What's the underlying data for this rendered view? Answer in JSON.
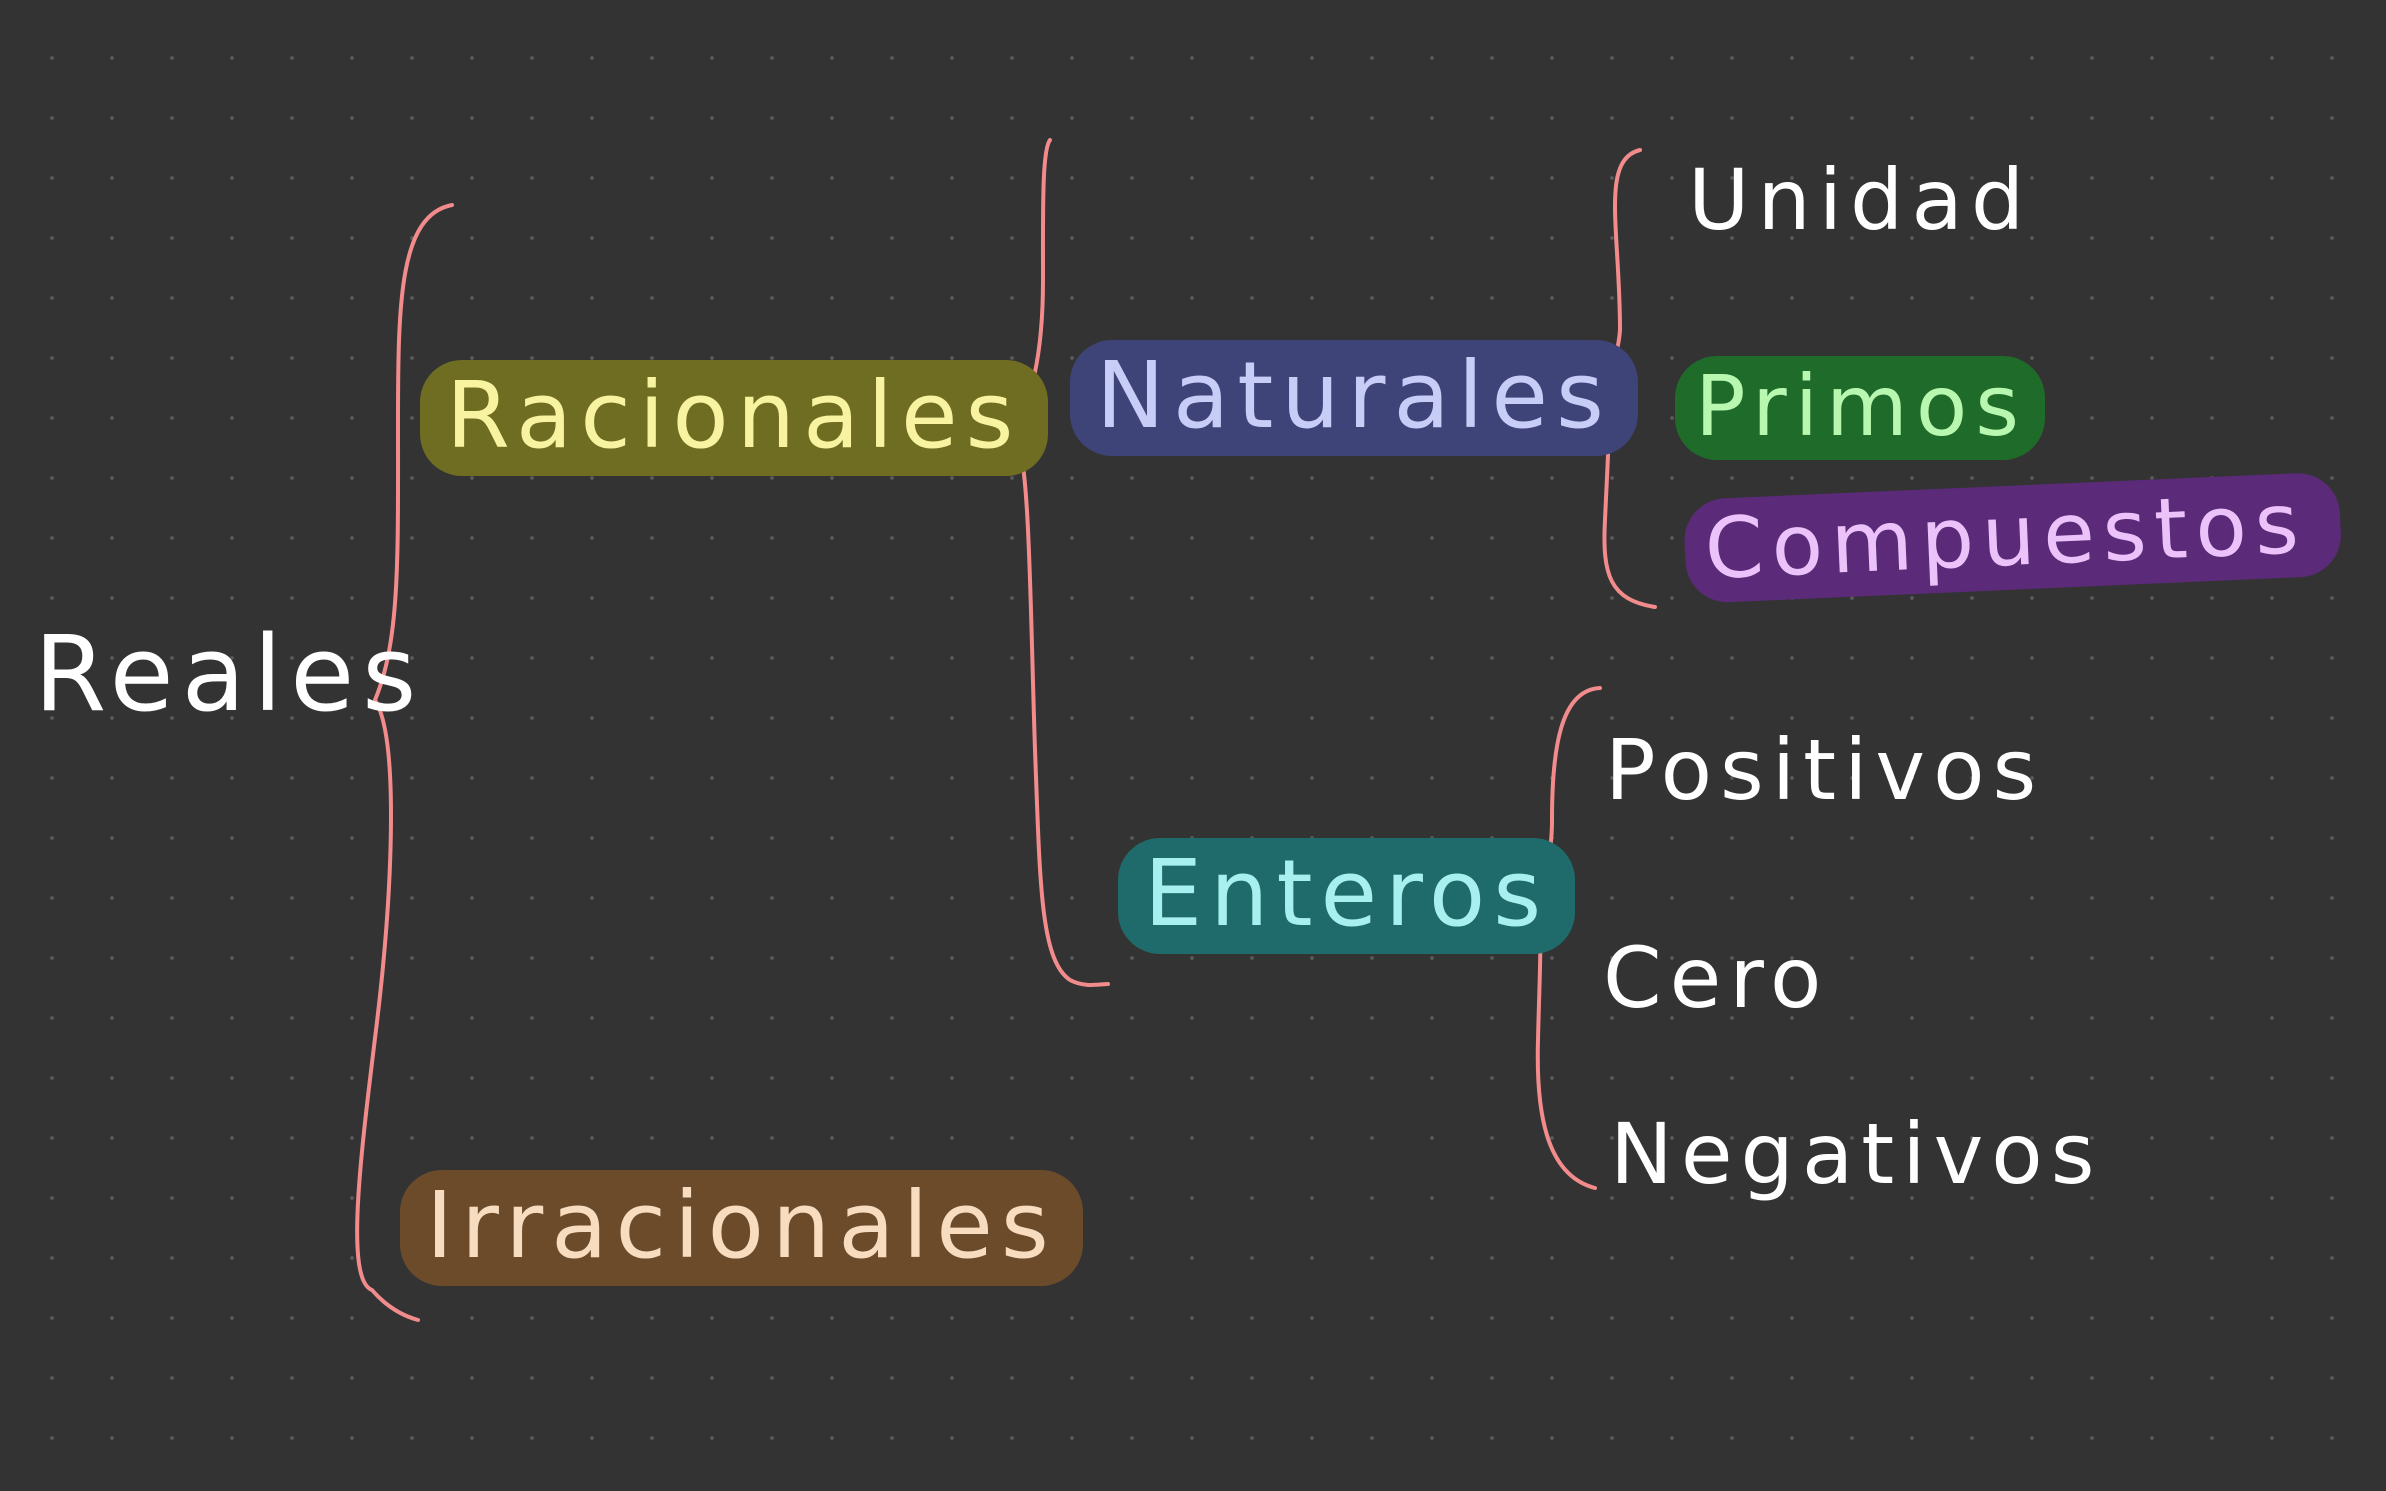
{
  "colors": {
    "background": "#333333",
    "dot_grid": "#5a5a5a",
    "brace": "#f28c8c",
    "plain_text": "#ffffff"
  },
  "nodes": {
    "reales": {
      "label": "Reales"
    },
    "racionales": {
      "label": "Racionales",
      "bg": "#6f6d21",
      "fg": "#f7f3a0"
    },
    "irracionales": {
      "label": "Irracionales",
      "bg": "#6b4b2a",
      "fg": "#f7dcc0"
    },
    "naturales": {
      "label": "Naturales",
      "bg": "#3e4378",
      "fg": "#c7cdf7"
    },
    "enteros": {
      "label": "Enteros",
      "bg": "#1f6b6b",
      "fg": "#a8f0ef"
    },
    "unidad": {
      "label": "Unidad"
    },
    "primos": {
      "label": "Primos",
      "bg": "#1f6b2a",
      "fg": "#b8f7b0"
    },
    "compuestos": {
      "label": "Compuestos",
      "bg": "#5b2a78",
      "fg": "#ecc2fa"
    },
    "positivos": {
      "label": "Positivos"
    },
    "cero": {
      "label": "Cero"
    },
    "negativos": {
      "label": "Negativos"
    }
  }
}
